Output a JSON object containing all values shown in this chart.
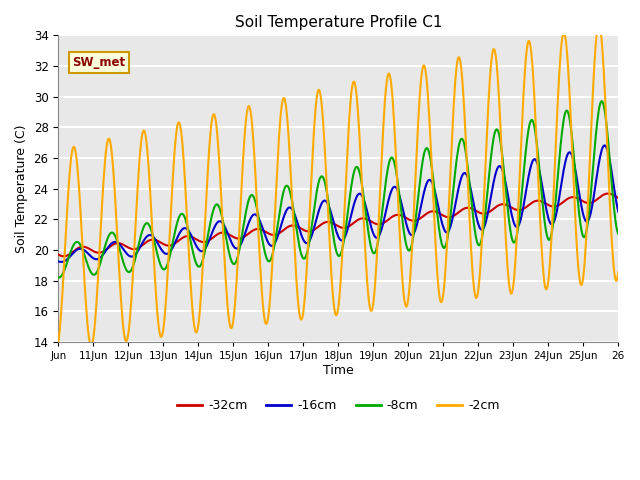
{
  "title": "Soil Temperature Profile C1",
  "xlabel": "Time",
  "ylabel": "Soil Temperature (C)",
  "ylim": [
    14,
    34
  ],
  "xlim_days": [
    0,
    16
  ],
  "bg_color": "#e8e8e8",
  "grid_color": "white",
  "annotation_label": "SW_met",
  "annotation_bg": "#ffffdd",
  "annotation_border": "#cc9900",
  "annotation_text_color": "#880000",
  "legend_entries": [
    "-32cm",
    "-16cm",
    "-8cm",
    "-2cm"
  ],
  "line_colors": [
    "#cc0000",
    "#0000cc",
    "#00aa00",
    "#ffaa00"
  ],
  "tick_labels": [
    "Jun",
    "11Jun",
    "12Jun",
    "13Jun",
    "14Jun",
    "15Jun",
    "16Jun",
    "17Jun",
    "18Jun",
    "19Jun",
    "20Jun",
    "21Jun",
    "22Jun",
    "23Jun",
    "24Jun",
    "25Jun",
    "26"
  ],
  "tick_positions": [
    0,
    1,
    2,
    3,
    4,
    5,
    6,
    7,
    8,
    9,
    10,
    11,
    12,
    13,
    14,
    15,
    16
  ],
  "yticks": [
    14,
    16,
    18,
    20,
    22,
    24,
    26,
    28,
    30,
    32,
    34
  ]
}
